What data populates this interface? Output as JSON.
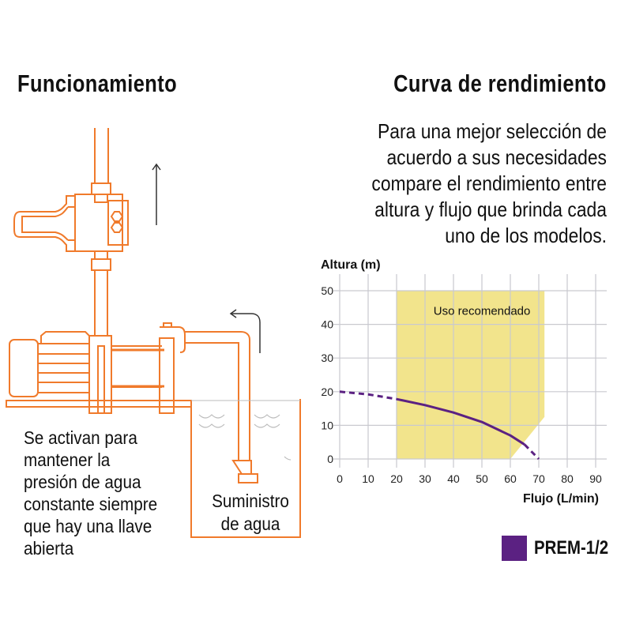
{
  "left_section": {
    "title": "Funcionamiento",
    "description_lines": [
      "Se activan para",
      "mantener la",
      "presión de agua",
      "constante siempre",
      "que hay una llave",
      "abierta"
    ],
    "supply_label_lines": [
      "Suministro",
      "de agua"
    ]
  },
  "right_section": {
    "title": "Curva de rendimiento",
    "description_lines": [
      "Para una mejor selección de",
      "acuerdo a sus necesidades",
      "compare el rendimiento entre",
      "altura y flujo que brinda cada",
      "uno de los modelos."
    ]
  },
  "colors": {
    "diagram": "#f07a2b",
    "region": "#f2e48c",
    "curve": "#5b2182",
    "grid": "#c9c9cf"
  },
  "chart_data": {
    "type": "line",
    "xlabel": "Flujo (L/min)",
    "ylabel": "Altura (m)",
    "xlim": [
      0,
      90
    ],
    "ylim": [
      0,
      50
    ],
    "xticks": [
      0,
      10,
      20,
      30,
      40,
      50,
      60,
      70,
      80,
      90
    ],
    "yticks": [
      0,
      10,
      20,
      30,
      40,
      50
    ],
    "grid": true,
    "region": {
      "label": "Uso recomendado",
      "polygon": [
        [
          20,
          0
        ],
        [
          20,
          50
        ],
        [
          72,
          50
        ],
        [
          72,
          12.5
        ],
        [
          60,
          0
        ]
      ]
    },
    "series": [
      {
        "name": "PREM-1/2",
        "color": "#5b2182",
        "x": [
          0,
          10,
          20,
          30,
          40,
          50,
          60,
          65,
          70
        ],
        "y": [
          20,
          19.2,
          17.8,
          16,
          13.8,
          11,
          7,
          4.3,
          0
        ],
        "dashed_below_x": 20,
        "dashed_above_x": 65
      }
    ],
    "legend": {
      "placement": "bottom-right",
      "entries": [
        "PREM-1/2"
      ]
    }
  }
}
